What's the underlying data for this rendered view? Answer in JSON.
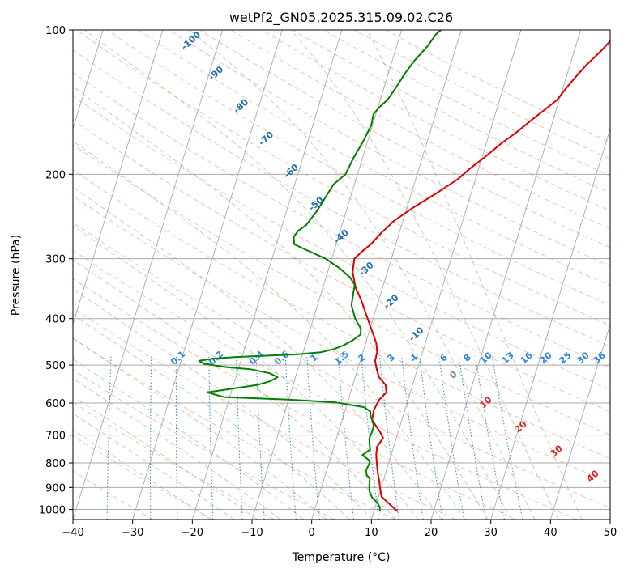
{
  "chart_data": {
    "type": "line",
    "chart_kind": "Skew-T log-P sounding",
    "title": "wetPf2_GN05.2025.315.09.02.C26",
    "xlabel": "Temperature (°C)",
    "ylabel": "Pressure (hPa)",
    "xlim": [
      -40,
      50
    ],
    "ylim": [
      1050,
      100
    ],
    "y_scale": "log",
    "x_ticks": [
      -40,
      -30,
      -20,
      -10,
      0,
      10,
      20,
      30,
      40,
      50
    ],
    "y_ticks": [
      100,
      200,
      300,
      400,
      500,
      600,
      700,
      800,
      900,
      1000
    ],
    "grid": true,
    "series": [
      {
        "color": "#dd0000",
        "points": [
          [
            14,
            1010
          ],
          [
            13,
            990
          ],
          [
            12,
            970
          ],
          [
            10.5,
            940
          ],
          [
            9.8,
            900
          ],
          [
            9.3,
            870
          ],
          [
            8.7,
            840
          ],
          [
            8,
            800
          ],
          [
            7.5,
            770
          ],
          [
            7.2,
            740
          ],
          [
            7.8,
            710
          ],
          [
            7,
            690
          ],
          [
            6,
            670
          ],
          [
            5,
            650
          ],
          [
            4.8,
            620
          ],
          [
            5.2,
            590
          ],
          [
            6,
            570
          ],
          [
            5.5,
            550
          ],
          [
            4,
            530
          ],
          [
            3.2,
            510
          ],
          [
            2.5,
            490
          ],
          [
            2.4,
            470
          ],
          [
            1.8,
            450
          ],
          [
            0.2,
            420
          ],
          [
            -1.5,
            390
          ],
          [
            -3,
            365
          ],
          [
            -4.5,
            345
          ],
          [
            -5.8,
            320
          ],
          [
            -6.2,
            300
          ],
          [
            -5.3,
            290
          ],
          [
            -4.2,
            280
          ],
          [
            -3,
            265
          ],
          [
            -1.5,
            250
          ],
          [
            1,
            235
          ],
          [
            4,
            220
          ],
          [
            7,
            205
          ],
          [
            8.5,
            195
          ],
          [
            10.3,
            185
          ],
          [
            12.6,
            172
          ],
          [
            14.6,
            163
          ],
          [
            16.4,
            154
          ],
          [
            18,
            147
          ],
          [
            19.6,
            140
          ],
          [
            20.6,
            132
          ],
          [
            21.6,
            125
          ],
          [
            22.8,
            118
          ],
          [
            24.4,
            111
          ],
          [
            25.6,
            105
          ],
          [
            27,
            100
          ]
        ]
      },
      {
        "color": "#008000",
        "points": [
          [
            11,
            1010
          ],
          [
            10.8,
            990
          ],
          [
            10.2,
            970
          ],
          [
            9,
            945
          ],
          [
            8.3,
            920
          ],
          [
            8,
            900
          ],
          [
            7.8,
            880
          ],
          [
            7.6,
            860
          ],
          [
            7,
            850
          ],
          [
            6.6,
            830
          ],
          [
            6.8,
            800
          ],
          [
            6.6,
            790
          ],
          [
            5.2,
            770
          ],
          [
            6.2,
            750
          ],
          [
            5.8,
            730
          ],
          [
            5.5,
            710
          ],
          [
            5.6,
            690
          ],
          [
            5.6,
            670
          ],
          [
            5,
            650
          ],
          [
            4.6,
            640
          ],
          [
            4.3,
            625
          ],
          [
            3,
            612
          ],
          [
            -2,
            598
          ],
          [
            -10,
            590
          ],
          [
            -21,
            583
          ],
          [
            -24,
            570
          ],
          [
            -20,
            560
          ],
          [
            -16,
            550
          ],
          [
            -14,
            540
          ],
          [
            -13,
            530
          ],
          [
            -14.5,
            520
          ],
          [
            -18,
            510
          ],
          [
            -22,
            505
          ],
          [
            -26,
            497
          ],
          [
            -27,
            490
          ],
          [
            -25,
            485
          ],
          [
            -21,
            481
          ],
          [
            -16,
            478
          ],
          [
            -11,
            475
          ],
          [
            -7,
            470
          ],
          [
            -5,
            463
          ],
          [
            -3.5,
            454
          ],
          [
            -2.3,
            444
          ],
          [
            -1.3,
            432
          ],
          [
            -1.5,
            420
          ],
          [
            -3,
            400
          ],
          [
            -4.3,
            375
          ],
          [
            -4.6,
            355
          ],
          [
            -4.8,
            340
          ],
          [
            -6,
            328
          ],
          [
            -8,
            315
          ],
          [
            -11,
            300
          ],
          [
            -14,
            290
          ],
          [
            -17,
            280
          ],
          [
            -17.5,
            270
          ],
          [
            -17,
            262
          ],
          [
            -16,
            255
          ],
          [
            -15,
            240
          ],
          [
            -14.5,
            230
          ],
          [
            -13.5,
            210
          ],
          [
            -12,
            200
          ],
          [
            -11.5,
            185
          ],
          [
            -10.7,
            170
          ],
          [
            -10.2,
            158
          ],
          [
            -10.4,
            150
          ],
          [
            -9.8,
            145
          ],
          [
            -8.8,
            140
          ],
          [
            -8,
            132
          ],
          [
            -7.2,
            123
          ],
          [
            -6.3,
            116
          ],
          [
            -4.8,
            108
          ],
          [
            -4,
            102
          ],
          [
            -3.4,
            100
          ]
        ]
      }
    ],
    "background_lines": {
      "dry_adiabat_labels": [
        "-100",
        "-90",
        "-80",
        "-70",
        "-60",
        "-50",
        "-40",
        "-30",
        "-20",
        "-10"
      ],
      "mixing_ratio_labels": [
        "0.1",
        "0.2",
        "0.4",
        "0.6",
        "1",
        "1.5",
        "2",
        "3",
        "4",
        "6",
        "8",
        "10",
        "13",
        "16",
        "20",
        "25",
        "30",
        "36"
      ],
      "moist_adiabat_labels": [
        "0",
        "10",
        "20",
        "30",
        "40"
      ]
    },
    "colors": {
      "dry_adiabat": "#f28a6c",
      "moist_adiabat": "#7fbf7f",
      "mixing_ratio": "#1f77d4",
      "dry_label": "#1f6fb0",
      "moist_label_cold": "#808080",
      "moist_label_warm": "#d62728",
      "grid": "#aaaaaa"
    }
  }
}
